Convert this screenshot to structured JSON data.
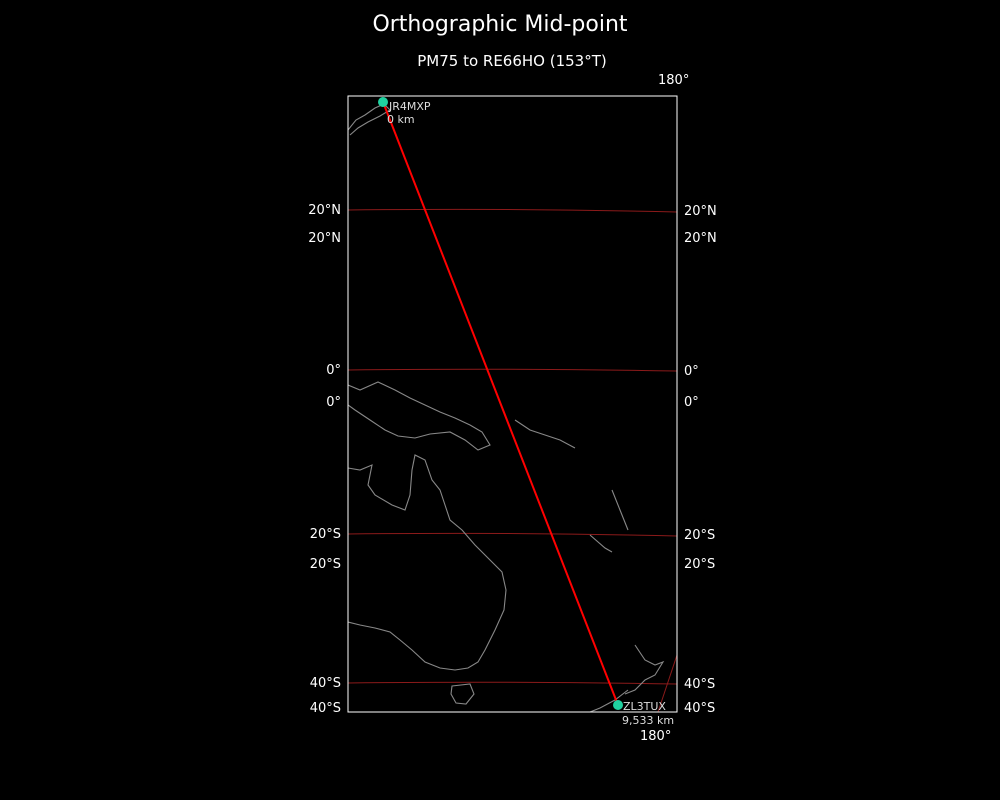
{
  "title": "Orthographic Mid-point",
  "subtitle": "PM75 to RE66HO (153°T)",
  "colors": {
    "background": "#000000",
    "path": "#ff0000",
    "graticule": "#8b1a1a",
    "coast": "#888888",
    "marker": "#1fd1a0",
    "frame": "#ffffff"
  },
  "grid_labels": {
    "top": "180°",
    "bottom": "180°",
    "left": [
      "20°N",
      "20°N",
      "0°",
      "0°",
      "20°S",
      "20°S",
      "40°S",
      "40°S"
    ],
    "right": [
      "20°N",
      "20°N",
      "0°",
      "0°",
      "20°S",
      "20°S",
      "40°S",
      "40°S"
    ]
  },
  "start": {
    "label": "JR4MXP",
    "distance": "0 km",
    "marker_icon": "circle"
  },
  "end": {
    "label": "ZL3TUX",
    "distance": "9,533 km",
    "marker_icon": "circle"
  }
}
